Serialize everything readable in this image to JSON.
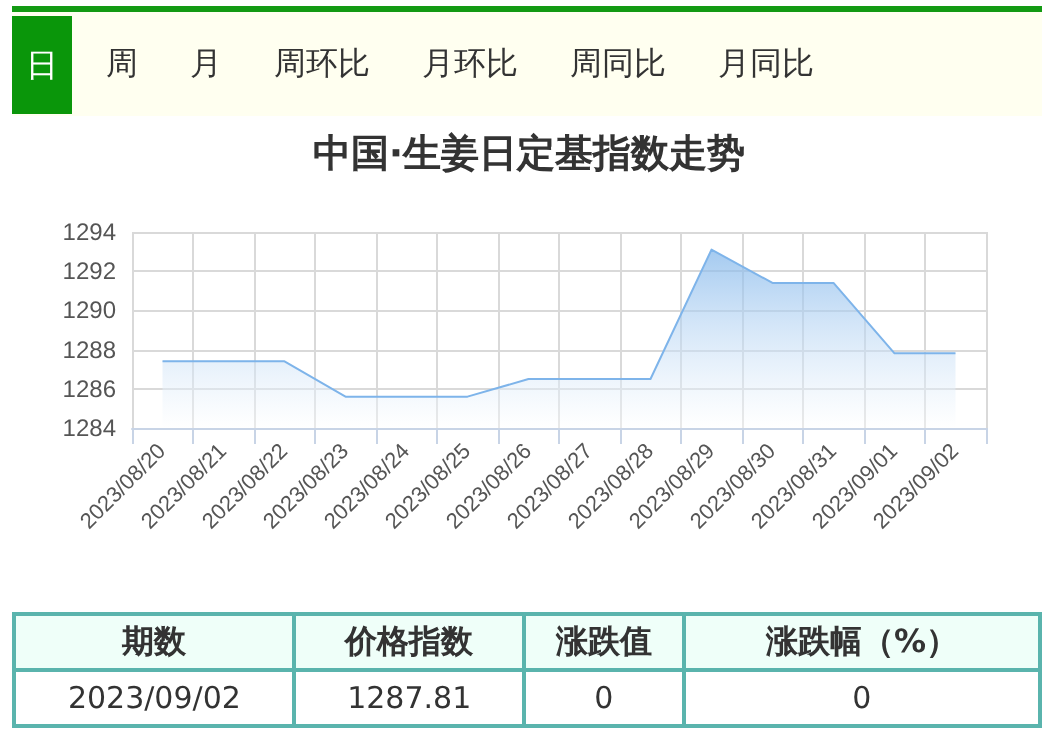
{
  "chart_data": {
    "type": "area",
    "title": "中国·生姜日定基指数走势",
    "categories": [
      "2023/08/20",
      "2023/08/21",
      "2023/08/22",
      "2023/08/23",
      "2023/08/24",
      "2023/08/25",
      "2023/08/26",
      "2023/08/27",
      "2023/08/28",
      "2023/08/29",
      "2023/08/30",
      "2023/08/31",
      "2023/09/01",
      "2023/09/02"
    ],
    "series": [
      {
        "color": "#7eb4ea",
        "values": [
          1287.4,
          1287.4,
          1287.4,
          1285.6,
          1285.6,
          1285.6,
          1286.5,
          1286.5,
          1286.5,
          1293.1,
          1291.4,
          1291.4,
          1287.81,
          1287.81
        ]
      }
    ],
    "ylim": [
      1284,
      1294
    ],
    "yticks": [
      1284,
      1286,
      1288,
      1290,
      1292,
      1294
    ],
    "grid": true,
    "marker": "none",
    "line_style": "solid",
    "annotations": [
      "日",
      "周",
      "月",
      "周环比",
      "月环比",
      "周同比",
      "月同比",
      "期数",
      "价格指数",
      "涨跌值",
      "涨跌幅（%）",
      "2023/09/02",
      "1287.81",
      "0",
      "0"
    ]
  }
}
